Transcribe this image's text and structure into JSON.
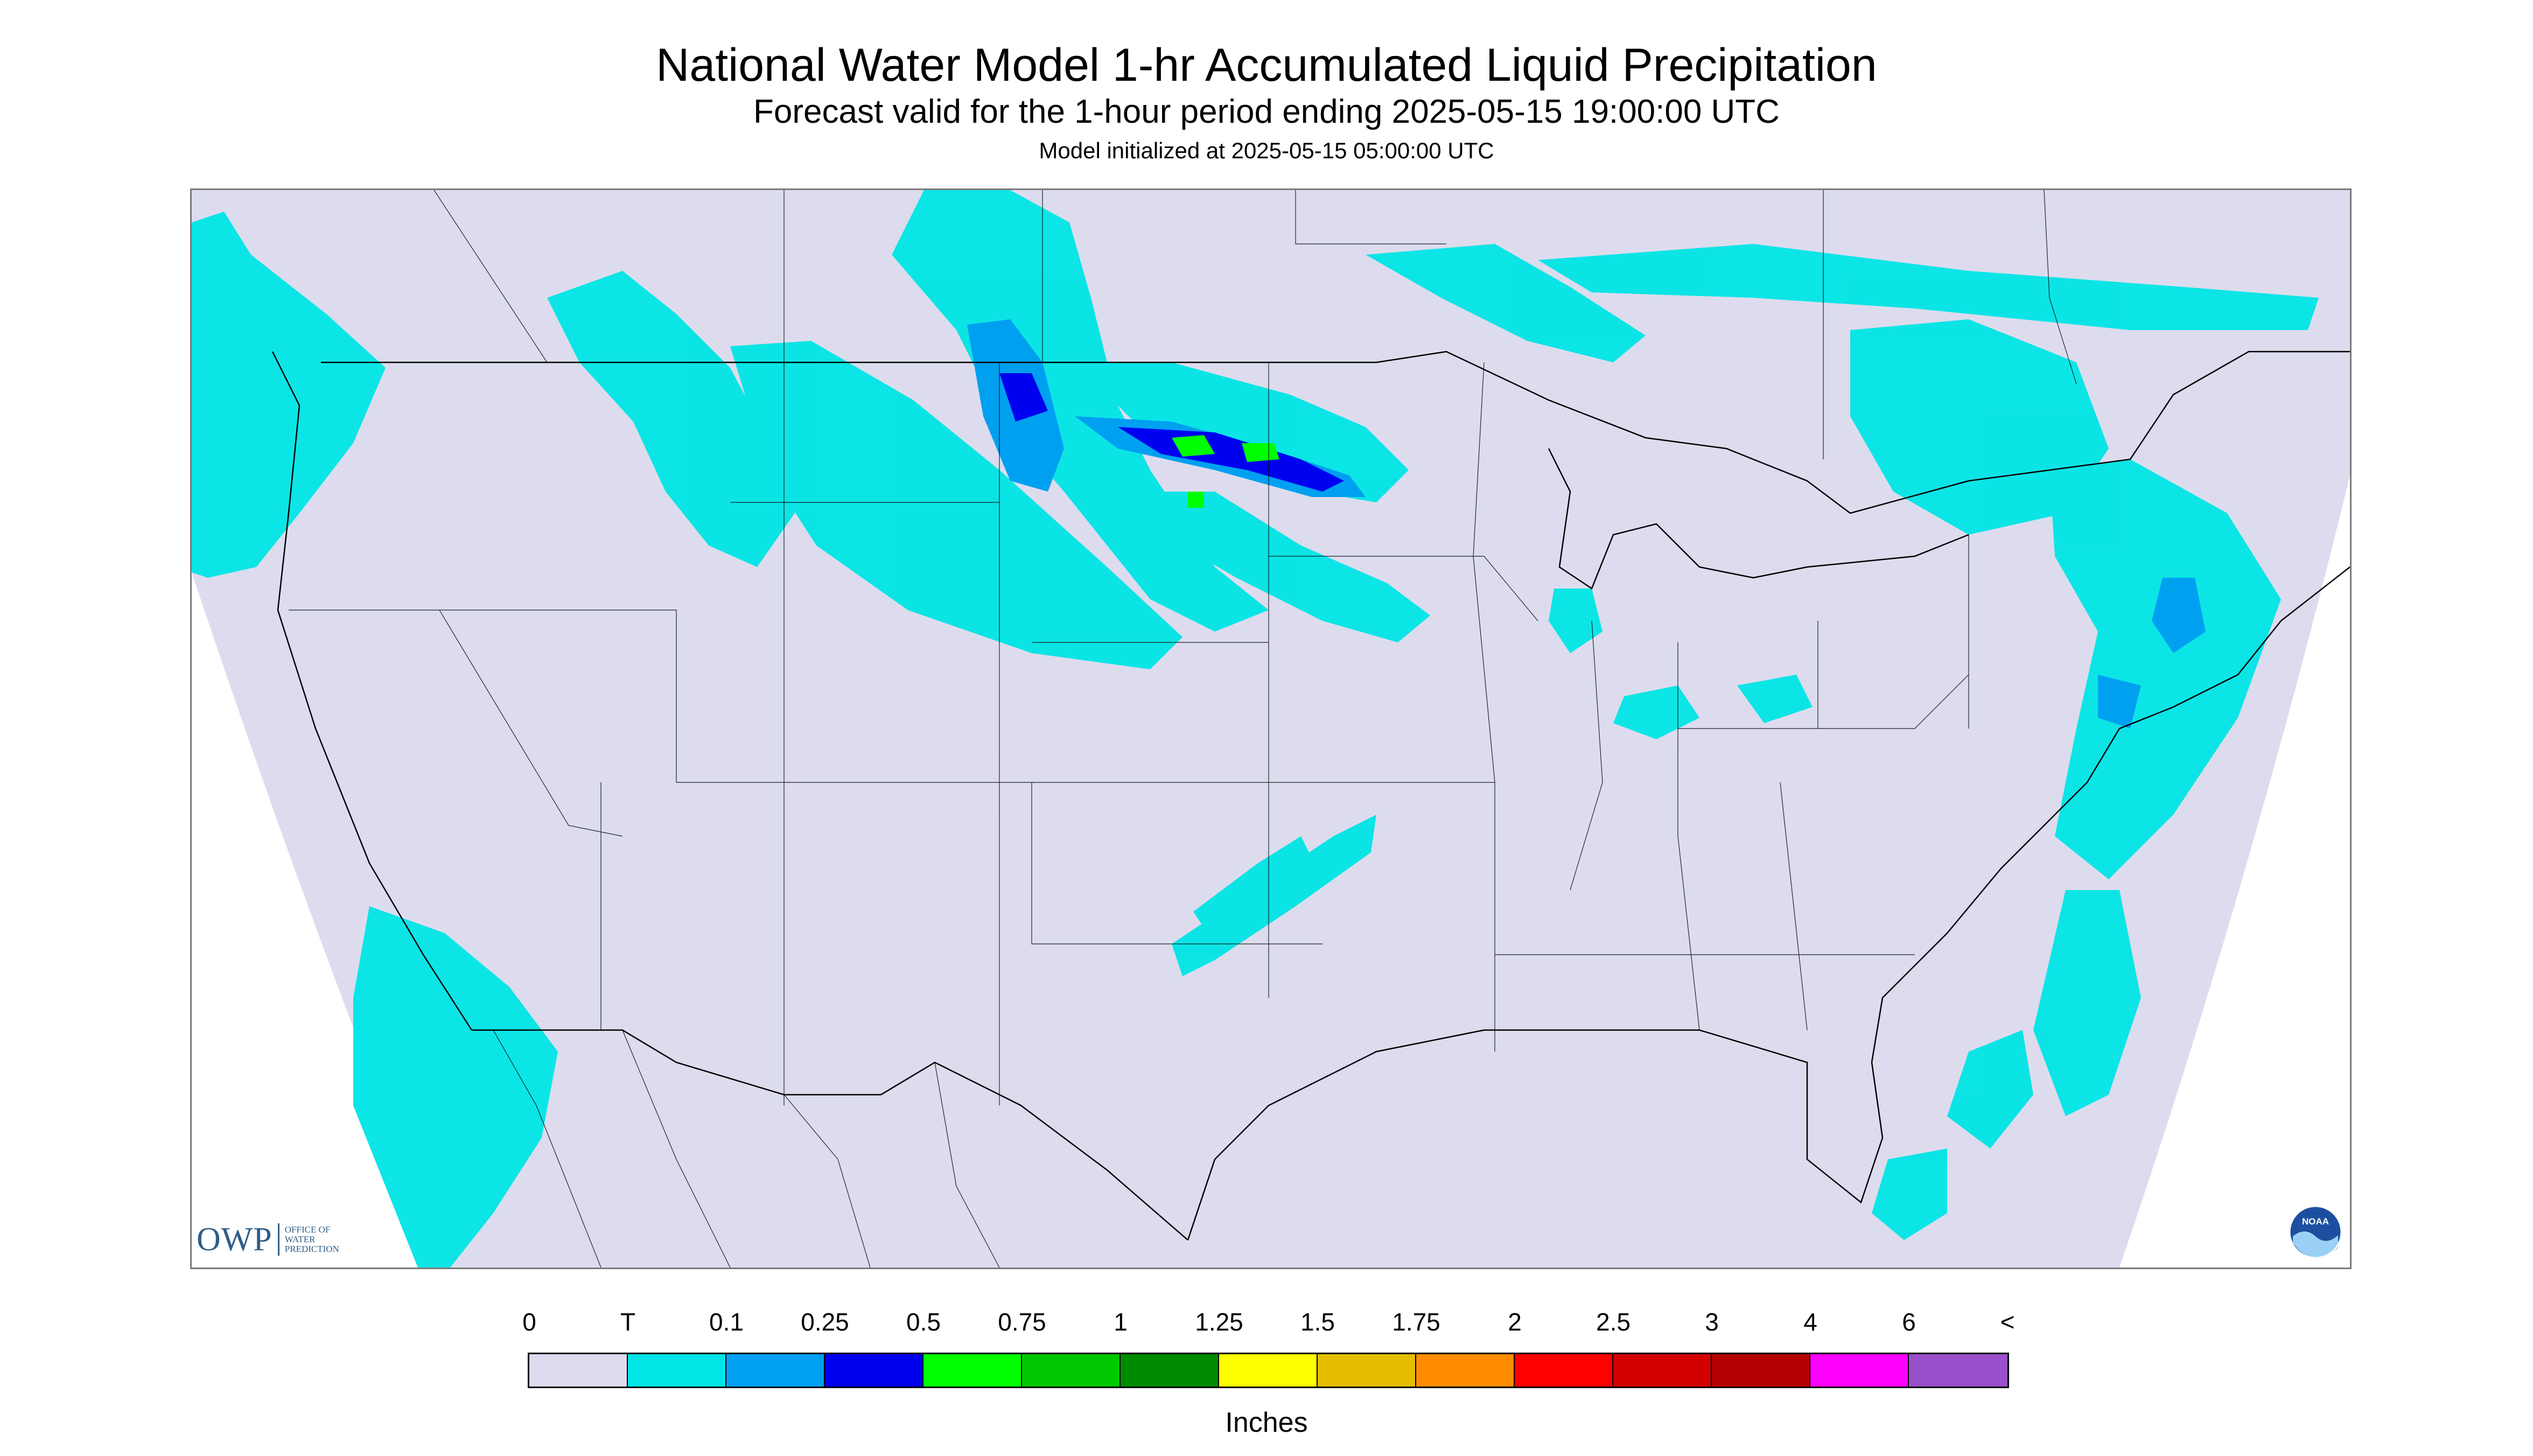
{
  "header": {
    "title": "National Water Model 1-hr Accumulated Liquid Precipitation",
    "subtitle": "Forecast valid for the 1-hour period ending 2025-05-15 19:00:00 UTC",
    "init_line": "Model initialized at 2025-05-15 05:00:00 UTC"
  },
  "map": {
    "region": "Contiguous United States",
    "background_color": "#dcdcee",
    "outside_domain_color": "#ffffff",
    "boundary_color": "#000000"
  },
  "logos": {
    "owp_mark": "OWP",
    "owp_text": [
      "OFFICE OF",
      "WATER",
      "PREDICTION"
    ],
    "noaa_mark": "NOAA"
  },
  "legend": {
    "units": "Inches",
    "labels": [
      "0",
      "T",
      "0.1",
      "0.25",
      "0.5",
      "0.75",
      "1",
      "1.25",
      "1.5",
      "1.75",
      "2",
      "2.5",
      "3",
      "4",
      "6",
      "<"
    ],
    "colors": [
      "#dcdcee",
      "#00e5e5",
      "#00a0f0",
      "#0000f0",
      "#00ff00",
      "#00c800",
      "#008c00",
      "#ffff00",
      "#e6be00",
      "#ff8c00",
      "#ff0000",
      "#d20000",
      "#b40000",
      "#ff00ff",
      "#9a50cc"
    ]
  }
}
